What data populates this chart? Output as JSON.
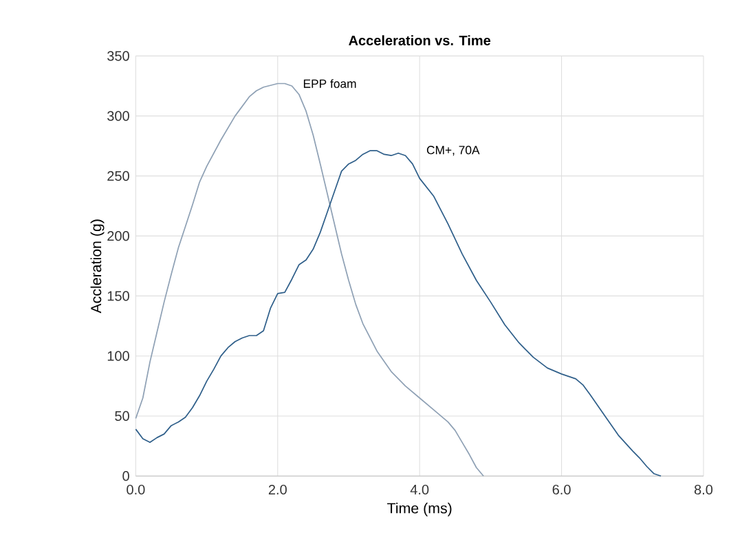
{
  "chart_data": {
    "type": "line",
    "title": "Acceleration vs. Time",
    "xlabel": "Time (ms)",
    "ylabel": "Accleration (g)",
    "xlim": [
      0,
      8
    ],
    "xticks": [
      {
        "value": 0,
        "label": "0.0"
      },
      {
        "value": 2,
        "label": "2.0"
      },
      {
        "value": 4,
        "label": "4.0"
      },
      {
        "value": 6,
        "label": "6.0"
      },
      {
        "value": 8,
        "label": "8.0"
      }
    ],
    "ylim": [
      0,
      350
    ],
    "yticks": [
      0,
      50,
      100,
      150,
      200,
      250,
      300,
      350
    ],
    "grid": true,
    "marker": "none",
    "line_style": "solid",
    "series": [
      {
        "name": "EPP foam",
        "color": "#8fa1b5",
        "x": [
          0.0,
          0.1,
          0.2,
          0.3,
          0.4,
          0.5,
          0.6,
          0.7,
          0.8,
          0.9,
          1.0,
          1.2,
          1.4,
          1.6,
          1.7,
          1.8,
          2.0,
          2.1,
          2.2,
          2.3,
          2.4,
          2.5,
          2.6,
          2.7,
          2.8,
          2.9,
          3.0,
          3.1,
          3.2,
          3.4,
          3.6,
          3.8,
          4.0,
          4.2,
          4.4,
          4.5,
          4.6,
          4.7,
          4.8,
          4.9
        ],
        "values": [
          48,
          65,
          95,
          120,
          145,
          168,
          190,
          208,
          226,
          245,
          258,
          280,
          300,
          316,
          321,
          324,
          327,
          327,
          325,
          318,
          304,
          284,
          260,
          235,
          210,
          185,
          163,
          143,
          127,
          104,
          87,
          75,
          65,
          55,
          45,
          38,
          28,
          18,
          7,
          0
        ]
      },
      {
        "name": "CM+, 70A",
        "color": "#2f5f8a",
        "x": [
          0.0,
          0.1,
          0.2,
          0.3,
          0.4,
          0.5,
          0.6,
          0.7,
          0.8,
          0.9,
          1.0,
          1.1,
          1.2,
          1.3,
          1.4,
          1.5,
          1.6,
          1.7,
          1.8,
          1.9,
          2.0,
          2.1,
          2.2,
          2.3,
          2.4,
          2.5,
          2.6,
          2.7,
          2.8,
          2.9,
          3.0,
          3.1,
          3.2,
          3.3,
          3.4,
          3.5,
          3.6,
          3.7,
          3.8,
          3.9,
          4.0,
          4.2,
          4.4,
          4.6,
          4.8,
          5.0,
          5.2,
          5.4,
          5.6,
          5.8,
          6.0,
          6.2,
          6.3,
          6.4,
          6.6,
          6.8,
          7.0,
          7.1,
          7.2,
          7.3,
          7.4
        ],
        "values": [
          39,
          31,
          28,
          32,
          35,
          42,
          45,
          49,
          57,
          67,
          79,
          89,
          100,
          107,
          112,
          115,
          117,
          117,
          121,
          140,
          152,
          153,
          164,
          176,
          180,
          189,
          203,
          220,
          237,
          254,
          260,
          263,
          268,
          271,
          271,
          268,
          267,
          269,
          267,
          260,
          248,
          233,
          210,
          185,
          163,
          145,
          126,
          111,
          99,
          90,
          85,
          81,
          76,
          68,
          51,
          34,
          21,
          15,
          8,
          2,
          0
        ]
      }
    ]
  }
}
